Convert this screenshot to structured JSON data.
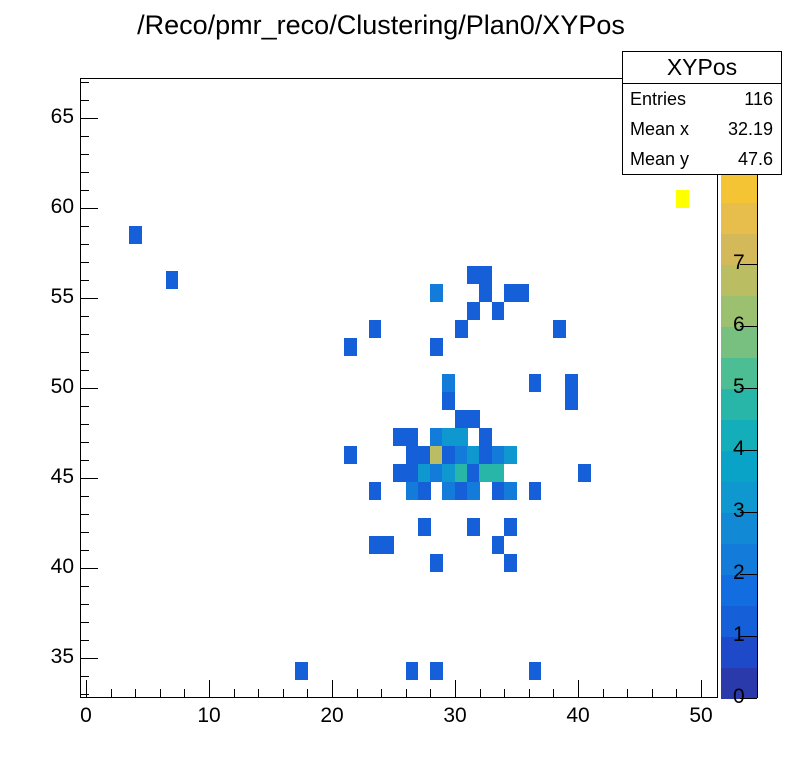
{
  "title": "/Reco/pmr_reco/Clustering/Plan0/XYPos",
  "stats_box": {
    "name": "XYPos",
    "rows": [
      {
        "label": "Entries",
        "value": "116"
      },
      {
        "label": "Mean x",
        "value": "32.19"
      },
      {
        "label": "Mean y",
        "value": "47.6"
      }
    ]
  },
  "chart_data": {
    "type": "heatmap",
    "title": "/Reco/pmr_reco/Clustering/Plan0/XYPos",
    "xlabel": "",
    "ylabel": "",
    "xlim": [
      -0.5,
      51.5
    ],
    "ylim": [
      32.8,
      67.2
    ],
    "x_ticks": [
      0,
      10,
      20,
      30,
      40,
      50
    ],
    "y_ticks": [
      35,
      40,
      45,
      50,
      55,
      60,
      65
    ],
    "z_ticks": [
      0,
      1,
      2,
      3,
      4,
      5,
      6,
      7
    ],
    "zlim": [
      0,
      8
    ],
    "entries": 116,
    "mean_x": 32.19,
    "mean_y": 47.6,
    "palette": [
      "#2a3aab",
      "#1e49c8",
      "#1560d9",
      "#126ee0",
      "#137cdb",
      "#1289d4",
      "#0e98cf",
      "#0aa3c8",
      "#14aebb",
      "#28b6a8",
      "#4dbd94",
      "#78c07f",
      "#9bc06f",
      "#bbbd62",
      "#d4b95b",
      "#e7bd4c",
      "#f5c435"
    ],
    "cells": [
      {
        "x": 48.5,
        "y": 60.5,
        "z": 8
      },
      {
        "x": 4,
        "y": 58.5,
        "z": 1
      },
      {
        "x": 7,
        "y": 56,
        "z": 1
      },
      {
        "x": 31.5,
        "y": 56.3,
        "z": 1
      },
      {
        "x": 32.5,
        "y": 56.3,
        "z": 1
      },
      {
        "x": 28.5,
        "y": 55.3,
        "z": 2
      },
      {
        "x": 32.5,
        "y": 55.3,
        "z": 1
      },
      {
        "x": 34.5,
        "y": 55.3,
        "z": 1
      },
      {
        "x": 35.5,
        "y": 55.3,
        "z": 1
      },
      {
        "x": 31.5,
        "y": 54.3,
        "z": 1
      },
      {
        "x": 33.5,
        "y": 54.3,
        "z": 1
      },
      {
        "x": 23.5,
        "y": 53.3,
        "z": 1
      },
      {
        "x": 30.5,
        "y": 53.3,
        "z": 1
      },
      {
        "x": 38.5,
        "y": 53.3,
        "z": 1
      },
      {
        "x": 21.5,
        "y": 52.3,
        "z": 1
      },
      {
        "x": 28.5,
        "y": 52.3,
        "z": 1
      },
      {
        "x": 29.5,
        "y": 50.3,
        "z": 2
      },
      {
        "x": 36.5,
        "y": 50.3,
        "z": 1
      },
      {
        "x": 39.5,
        "y": 50.3,
        "z": 1
      },
      {
        "x": 29.5,
        "y": 49.3,
        "z": 1
      },
      {
        "x": 39.5,
        "y": 49.3,
        "z": 1
      },
      {
        "x": 30.5,
        "y": 48.3,
        "z": 1
      },
      {
        "x": 31.5,
        "y": 48.3,
        "z": 1
      },
      {
        "x": 25.5,
        "y": 47.3,
        "z": 1
      },
      {
        "x": 26.5,
        "y": 47.3,
        "z": 1
      },
      {
        "x": 28.5,
        "y": 47.3,
        "z": 2
      },
      {
        "x": 29.5,
        "y": 47.3,
        "z": 3
      },
      {
        "x": 30.5,
        "y": 47.3,
        "z": 3
      },
      {
        "x": 32.5,
        "y": 47.3,
        "z": 1
      },
      {
        "x": 21.5,
        "y": 46.3,
        "z": 1
      },
      {
        "x": 26.5,
        "y": 46.3,
        "z": 1
      },
      {
        "x": 27.5,
        "y": 46.3,
        "z": 1
      },
      {
        "x": 28.5,
        "y": 46.3,
        "z": 6
      },
      {
        "x": 29.5,
        "y": 46.3,
        "z": 1
      },
      {
        "x": 30.5,
        "y": 46.3,
        "z": 2
      },
      {
        "x": 31.5,
        "y": 46.3,
        "z": 3
      },
      {
        "x": 32.5,
        "y": 46.3,
        "z": 1
      },
      {
        "x": 33.5,
        "y": 46.3,
        "z": 2
      },
      {
        "x": 34.5,
        "y": 46.3,
        "z": 3
      },
      {
        "x": 25.5,
        "y": 45.3,
        "z": 1
      },
      {
        "x": 26.5,
        "y": 45.3,
        "z": 1
      },
      {
        "x": 27.5,
        "y": 45.3,
        "z": 3
      },
      {
        "x": 28.5,
        "y": 45.3,
        "z": 2
      },
      {
        "x": 29.5,
        "y": 45.3,
        "z": 3
      },
      {
        "x": 30.5,
        "y": 45.3,
        "z": 4
      },
      {
        "x": 31.5,
        "y": 45.3,
        "z": 1
      },
      {
        "x": 32.5,
        "y": 45.3,
        "z": 4
      },
      {
        "x": 33.5,
        "y": 45.3,
        "z": 4
      },
      {
        "x": 40.5,
        "y": 45.3,
        "z": 1
      },
      {
        "x": 23.5,
        "y": 44.3,
        "z": 1
      },
      {
        "x": 26.5,
        "y": 44.3,
        "z": 2
      },
      {
        "x": 27.5,
        "y": 44.3,
        "z": 1
      },
      {
        "x": 29.5,
        "y": 44.3,
        "z": 2
      },
      {
        "x": 30.5,
        "y": 44.3,
        "z": 1
      },
      {
        "x": 31.5,
        "y": 44.3,
        "z": 2
      },
      {
        "x": 33.5,
        "y": 44.3,
        "z": 1
      },
      {
        "x": 34.5,
        "y": 44.3,
        "z": 2
      },
      {
        "x": 36.5,
        "y": 44.3,
        "z": 1
      },
      {
        "x": 27.5,
        "y": 42.3,
        "z": 1
      },
      {
        "x": 31.5,
        "y": 42.3,
        "z": 1
      },
      {
        "x": 34.5,
        "y": 42.3,
        "z": 1
      },
      {
        "x": 23.5,
        "y": 41.3,
        "z": 1
      },
      {
        "x": 24.5,
        "y": 41.3,
        "z": 1
      },
      {
        "x": 33.5,
        "y": 41.3,
        "z": 1
      },
      {
        "x": 28.5,
        "y": 40.3,
        "z": 1
      },
      {
        "x": 34.5,
        "y": 40.3,
        "z": 1
      },
      {
        "x": 17.5,
        "y": 34.3,
        "z": 1
      },
      {
        "x": 26.5,
        "y": 34.3,
        "z": 1
      },
      {
        "x": 28.5,
        "y": 34.3,
        "z": 1
      },
      {
        "x": 36.5,
        "y": 34.3,
        "z": 1
      }
    ]
  },
  "colors": {
    "overflow_cell": "#ffff00",
    "frame": "#000000",
    "background": "#ffffff"
  }
}
